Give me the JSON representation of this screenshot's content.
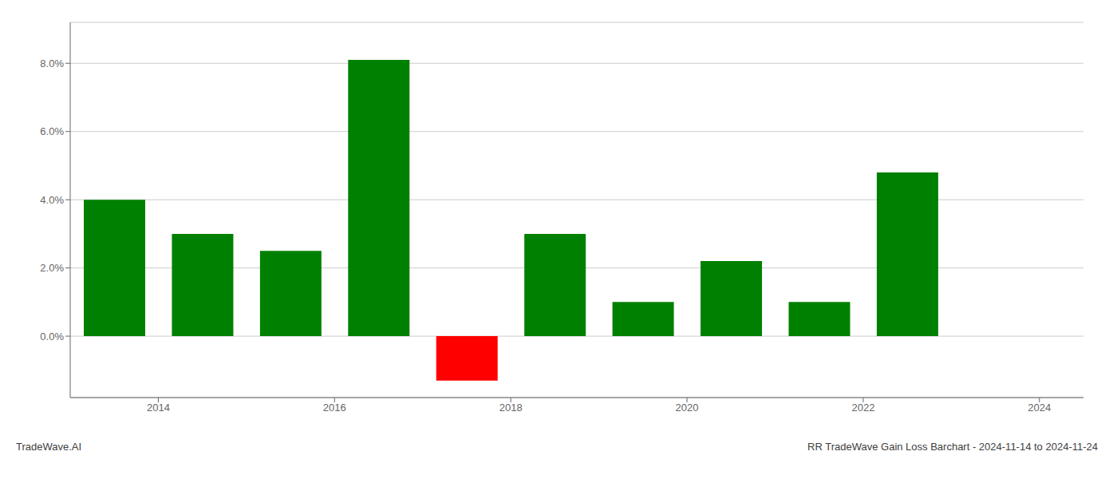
{
  "chart_data": {
    "type": "bar",
    "x": [
      2013.5,
      2014.5,
      2015.5,
      2016.5,
      2017.5,
      2018.5,
      2019.5,
      2020.5,
      2021.5,
      2022.5,
      2023.5
    ],
    "values": [
      0.04,
      0.03,
      0.025,
      0.081,
      -0.013,
      0.03,
      0.01,
      0.022,
      0.01,
      0.048,
      0.0
    ],
    "colors": [
      "#008000",
      "#008000",
      "#008000",
      "#008000",
      "#ff0000",
      "#008000",
      "#008000",
      "#008000",
      "#008000",
      "#008000",
      "#008000"
    ],
    "xlim": [
      2013.0,
      2024.5
    ],
    "xticks": [
      2014,
      2016,
      2018,
      2020,
      2022,
      2024
    ],
    "ylim": [
      -0.018,
      0.092
    ],
    "yticks": [
      {
        "value": 0,
        "label": "0.0%"
      },
      {
        "value": 0.02,
        "label": "2.0%"
      },
      {
        "value": 0.04,
        "label": "4.0%"
      },
      {
        "value": 0.06,
        "label": "6.0%"
      },
      {
        "value": 0.08,
        "label": "8.0%"
      }
    ],
    "grid": true,
    "annotations": [
      "TradeWave.AI",
      "RR TradeWave Gain Loss Barchart - 2024-11-14 to 2024-11-24"
    ]
  }
}
